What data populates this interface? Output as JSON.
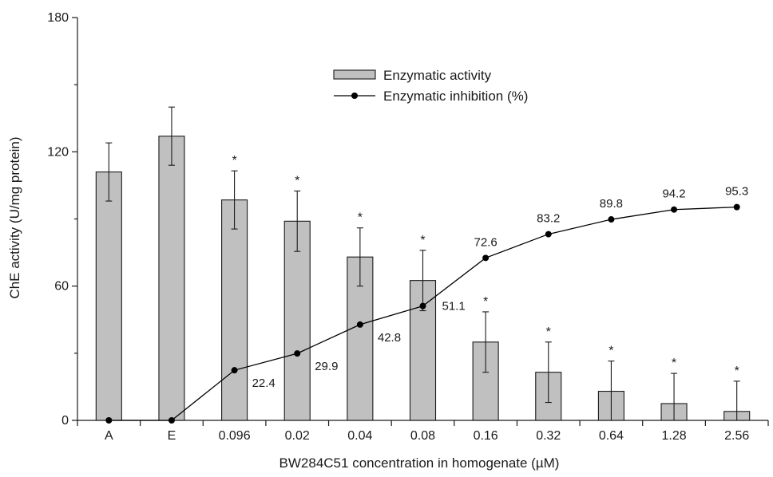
{
  "chart_data": {
    "type": "bar",
    "xlabel": "BW284C51 concentration in homogenate (µM)",
    "ylabel": "ChE activity (U/mg protein)",
    "ylim": [
      0,
      180
    ],
    "yticks": [
      0,
      60,
      120,
      180
    ],
    "categories": [
      "A",
      "E",
      "0.096",
      "0.02",
      "0.04",
      "0.08",
      "0.16",
      "0.32",
      "0.64",
      "1.28",
      "2.56"
    ],
    "series": [
      {
        "name": "Enzymatic activity",
        "kind": "bar",
        "color": "#c0c0c0",
        "values": [
          111,
          127,
          98.5,
          89,
          73,
          62.5,
          35,
          21.5,
          13,
          7.5,
          4
        ],
        "error": [
          13,
          13,
          13,
          13.5,
          13,
          13.5,
          13.5,
          13.5,
          13.5,
          13.5,
          13.5
        ],
        "significant": [
          false,
          false,
          true,
          true,
          true,
          true,
          true,
          true,
          true,
          true,
          true
        ],
        "significance_marker": "*"
      },
      {
        "name": "Enzymatic inhibition (%)",
        "kind": "line",
        "color": "#000000",
        "values": [
          0,
          0,
          22.4,
          29.9,
          42.8,
          51.1,
          72.6,
          83.2,
          89.8,
          94.2,
          95.3
        ],
        "point_labels": [
          "",
          "",
          "22.4",
          "29.9",
          "42.8",
          "51.1",
          "72.6",
          "83.2",
          "89.8",
          "94.2",
          "95.3"
        ]
      }
    ],
    "legend_position": "top-center",
    "grid": false
  }
}
